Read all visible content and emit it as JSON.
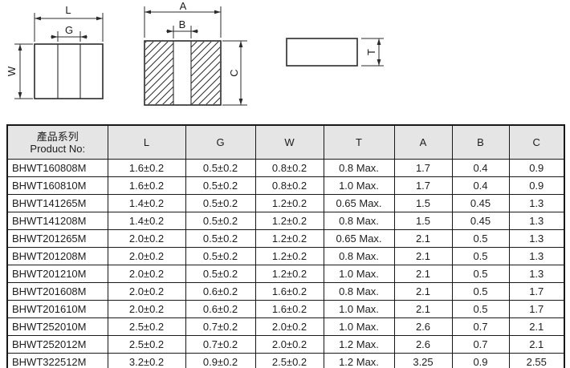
{
  "page": {
    "background": "#ffffff",
    "line_color": "#2b2b2b"
  },
  "diagram": {
    "labels": {
      "l": "L",
      "g": "G",
      "w": "W",
      "a": "A",
      "b": "B",
      "c": "C",
      "t": "T"
    }
  },
  "table": {
    "header_bg": "#e5e5e6",
    "header": {
      "product_zh": "產品系列",
      "product_en": "Product No:",
      "dims": [
        "L",
        "G",
        "W",
        "T",
        "A",
        "B",
        "C"
      ]
    },
    "rows": [
      {
        "product": "BHWT160808M",
        "values": [
          "1.6±0.2",
          "0.5±0.2",
          "0.8±0.2",
          "0.8 Max.",
          "1.7",
          "0.4",
          "0.9"
        ]
      },
      {
        "product": "BHWT160810M",
        "values": [
          "1.6±0.2",
          "0.5±0.2",
          "0.8±0.2",
          "1.0 Max.",
          "1.7",
          "0.4",
          "0.9"
        ]
      },
      {
        "product": "BHWT141265M",
        "values": [
          "1.4±0.2",
          "0.5±0.2",
          "1.2±0.2",
          "0.65 Max.",
          "1.5",
          "0.45",
          "1.3"
        ]
      },
      {
        "product": "BHWT141208M",
        "values": [
          "1.4±0.2",
          "0.5±0.2",
          "1.2±0.2",
          "0.8 Max.",
          "1.5",
          "0.45",
          "1.3"
        ]
      },
      {
        "product": "BHWT201265M",
        "values": [
          "2.0±0.2",
          "0.5±0.2",
          "1.2±0.2",
          "0.65 Max.",
          "2.1",
          "0.5",
          "1.3"
        ]
      },
      {
        "product": "BHWT201208M",
        "values": [
          "2.0±0.2",
          "0.5±0.2",
          "1.2±0.2",
          "0.8 Max.",
          "2.1",
          "0.5",
          "1.3"
        ]
      },
      {
        "product": "BHWT201210M",
        "values": [
          "2.0±0.2",
          "0.5±0.2",
          "1.2±0.2",
          "1.0 Max.",
          "2.1",
          "0.5",
          "1.3"
        ]
      },
      {
        "product": "BHWT201608M",
        "values": [
          "2.0±0.2",
          "0.6±0.2",
          "1.6±0.2",
          "0.8 Max.",
          "2.1",
          "0.5",
          "1.7"
        ]
      },
      {
        "product": "BHWT201610M",
        "values": [
          "2.0±0.2",
          "0.6±0.2",
          "1.6±0.2",
          "1.0 Max.",
          "2.1",
          "0.5",
          "1.7"
        ]
      },
      {
        "product": "BHWT252010M",
        "values": [
          "2.5±0.2",
          "0.7±0.2",
          "2.0±0.2",
          "1.0 Max.",
          "2.6",
          "0.7",
          "2.1"
        ]
      },
      {
        "product": "BHWT252012M",
        "values": [
          "2.5±0.2",
          "0.7±0.2",
          "2.0±0.2",
          "1.2 Max.",
          "2.6",
          "0.7",
          "2.1"
        ]
      },
      {
        "product": "BHWT322512M",
        "values": [
          "3.2±0.2",
          "0.9±0.2",
          "2.5±0.2",
          "1.2 Max.",
          "3.25",
          "0.9",
          "2.55"
        ]
      }
    ]
  }
}
